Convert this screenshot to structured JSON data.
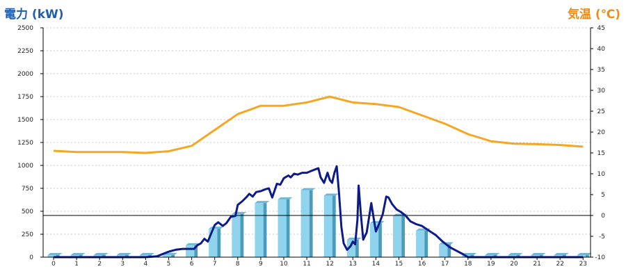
{
  "chart_data": {
    "type": "bar+line",
    "left_axis_title": "電力 (kW)",
    "right_axis_title": "気温 (℃)",
    "colors": {
      "left_title": "#1f5fae",
      "right_title": "#f28a12",
      "bars": "#8fd3ec",
      "bars_dark": "#4a9cbd",
      "power_line": "#0d1b8a",
      "temperature_line": "#f5a623",
      "grid": "#c8c8c8"
    },
    "x_ticks": [
      "0",
      "1",
      "2",
      "3",
      "4",
      "5",
      "6",
      "7",
      "8",
      "9",
      "10",
      "11",
      "12",
      "13",
      "14",
      "15",
      "16",
      "17",
      "18",
      "19",
      "20",
      "21",
      "22",
      "23"
    ],
    "y_left": {
      "min": 0,
      "max": 2500,
      "ticks": [
        "0",
        "250",
        "500",
        "750",
        "1000",
        "1250",
        "1500",
        "1750",
        "2000",
        "2250",
        "2500"
      ]
    },
    "y_right": {
      "min": -10,
      "max": 45,
      "ticks": [
        "-10",
        "-5",
        "0",
        "5",
        "10",
        "15",
        "20",
        "25",
        "30",
        "35",
        "40",
        "45"
      ]
    },
    "grid": true,
    "zero_line_temperature": 0,
    "bars": [
      0,
      0,
      0,
      0,
      0,
      25,
      130,
      310,
      470,
      590,
      630,
      730,
      670,
      190,
      370,
      450,
      290,
      140,
      0,
      0,
      0,
      0,
      0,
      0
    ],
    "temperature": [
      [
        0,
        15.5
      ],
      [
        1,
        15.2
      ],
      [
        2,
        15.2
      ],
      [
        3,
        15.2
      ],
      [
        4,
        15.0
      ],
      [
        5,
        15.4
      ],
      [
        6,
        16.7
      ],
      [
        7,
        20.5
      ],
      [
        8,
        24.3
      ],
      [
        9,
        26.3
      ],
      [
        10,
        26.3
      ],
      [
        11,
        27.1
      ],
      [
        12,
        28.5
      ],
      [
        13,
        27.1
      ],
      [
        14,
        26.7
      ],
      [
        15,
        26.0
      ],
      [
        16,
        24.0
      ],
      [
        17,
        22.0
      ],
      [
        18,
        19.5
      ],
      [
        19,
        17.8
      ],
      [
        20,
        17.2
      ],
      [
        21,
        17.1
      ],
      [
        22,
        16.9
      ],
      [
        23,
        16.5
      ]
    ],
    "power": [
      [
        0,
        0
      ],
      [
        1,
        0
      ],
      [
        2,
        0
      ],
      [
        3,
        0
      ],
      [
        4,
        0
      ],
      [
        4.5,
        10
      ],
      [
        4.8,
        40
      ],
      [
        5.0,
        60
      ],
      [
        5.3,
        80
      ],
      [
        5.6,
        90
      ],
      [
        5.9,
        90
      ],
      [
        6.1,
        90
      ],
      [
        6.25,
        130
      ],
      [
        6.4,
        150
      ],
      [
        6.55,
        200
      ],
      [
        6.7,
        170
      ],
      [
        6.85,
        260
      ],
      [
        7.0,
        350
      ],
      [
        7.15,
        380
      ],
      [
        7.35,
        340
      ],
      [
        7.5,
        370
      ],
      [
        7.7,
        440
      ],
      [
        7.9,
        450
      ],
      [
        8.0,
        570
      ],
      [
        8.2,
        610
      ],
      [
        8.4,
        660
      ],
      [
        8.5,
        690
      ],
      [
        8.65,
        660
      ],
      [
        8.8,
        710
      ],
      [
        9.0,
        720
      ],
      [
        9.2,
        740
      ],
      [
        9.35,
        750
      ],
      [
        9.5,
        650
      ],
      [
        9.7,
        800
      ],
      [
        9.85,
        790
      ],
      [
        10.0,
        860
      ],
      [
        10.2,
        890
      ],
      [
        10.3,
        870
      ],
      [
        10.45,
        910
      ],
      [
        10.6,
        900
      ],
      [
        10.8,
        920
      ],
      [
        11.0,
        920
      ],
      [
        11.2,
        940
      ],
      [
        11.4,
        960
      ],
      [
        11.5,
        970
      ],
      [
        11.6,
        870
      ],
      [
        11.75,
        810
      ],
      [
        11.9,
        920
      ],
      [
        12.0,
        840
      ],
      [
        12.1,
        810
      ],
      [
        12.2,
        920
      ],
      [
        12.3,
        990
      ],
      [
        12.4,
        700
      ],
      [
        12.5,
        330
      ],
      [
        12.6,
        150
      ],
      [
        12.75,
        80
      ],
      [
        12.9,
        120
      ],
      [
        13.0,
        170
      ],
      [
        13.1,
        140
      ],
      [
        13.2,
        410
      ],
      [
        13.25,
        780
      ],
      [
        13.35,
        460
      ],
      [
        13.45,
        190
      ],
      [
        13.6,
        270
      ],
      [
        13.8,
        590
      ],
      [
        13.9,
        430
      ],
      [
        14.0,
        280
      ],
      [
        14.15,
        370
      ],
      [
        14.3,
        470
      ],
      [
        14.45,
        660
      ],
      [
        14.55,
        650
      ],
      [
        14.7,
        580
      ],
      [
        14.9,
        520
      ],
      [
        15.1,
        490
      ],
      [
        15.3,
        450
      ],
      [
        15.5,
        390
      ],
      [
        15.75,
        360
      ],
      [
        16.0,
        340
      ],
      [
        16.3,
        290
      ],
      [
        16.6,
        240
      ],
      [
        16.9,
        170
      ],
      [
        17.2,
        110
      ],
      [
        17.5,
        70
      ],
      [
        17.8,
        30
      ],
      [
        18.0,
        0
      ],
      [
        23,
        0
      ]
    ]
  }
}
